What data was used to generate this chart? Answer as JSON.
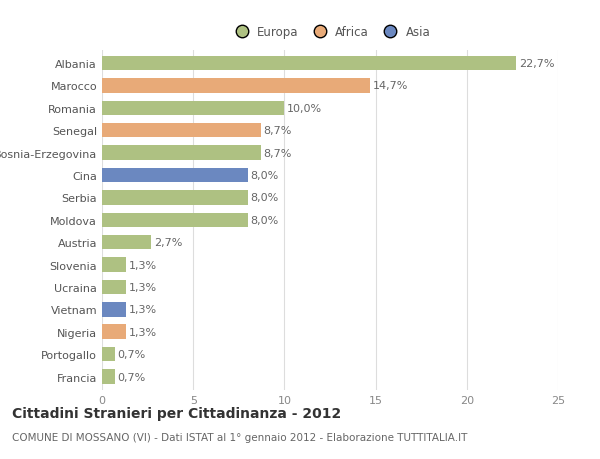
{
  "categories": [
    "Albania",
    "Marocco",
    "Romania",
    "Senegal",
    "Bosnia-Erzegovina",
    "Cina",
    "Serbia",
    "Moldova",
    "Austria",
    "Slovenia",
    "Ucraina",
    "Vietnam",
    "Nigeria",
    "Portogallo",
    "Francia"
  ],
  "values": [
    22.7,
    14.7,
    10.0,
    8.7,
    8.7,
    8.0,
    8.0,
    8.0,
    2.7,
    1.3,
    1.3,
    1.3,
    1.3,
    0.7,
    0.7
  ],
  "labels": [
    "22,7%",
    "14,7%",
    "10,0%",
    "8,7%",
    "8,7%",
    "8,0%",
    "8,0%",
    "8,0%",
    "2,7%",
    "1,3%",
    "1,3%",
    "1,3%",
    "1,3%",
    "0,7%",
    "0,7%"
  ],
  "continents": [
    "Europa",
    "Africa",
    "Europa",
    "Africa",
    "Europa",
    "Asia",
    "Europa",
    "Europa",
    "Europa",
    "Europa",
    "Europa",
    "Asia",
    "Africa",
    "Europa",
    "Europa"
  ],
  "colors": {
    "Europa": "#aec182",
    "Africa": "#e8aa78",
    "Asia": "#6b88c0"
  },
  "xlim": [
    0,
    25
  ],
  "xticks": [
    0,
    5,
    10,
    15,
    20,
    25
  ],
  "title": "Cittadini Stranieri per Cittadinanza - 2012",
  "subtitle": "COMUNE DI MOSSANO (VI) - Dati ISTAT al 1° gennaio 2012 - Elaborazione TUTTITALIA.IT",
  "background_color": "#ffffff",
  "grid_color": "#dddddd",
  "bar_height": 0.65,
  "label_fontsize": 8,
  "tick_fontsize": 8,
  "title_fontsize": 10,
  "subtitle_fontsize": 7.5
}
